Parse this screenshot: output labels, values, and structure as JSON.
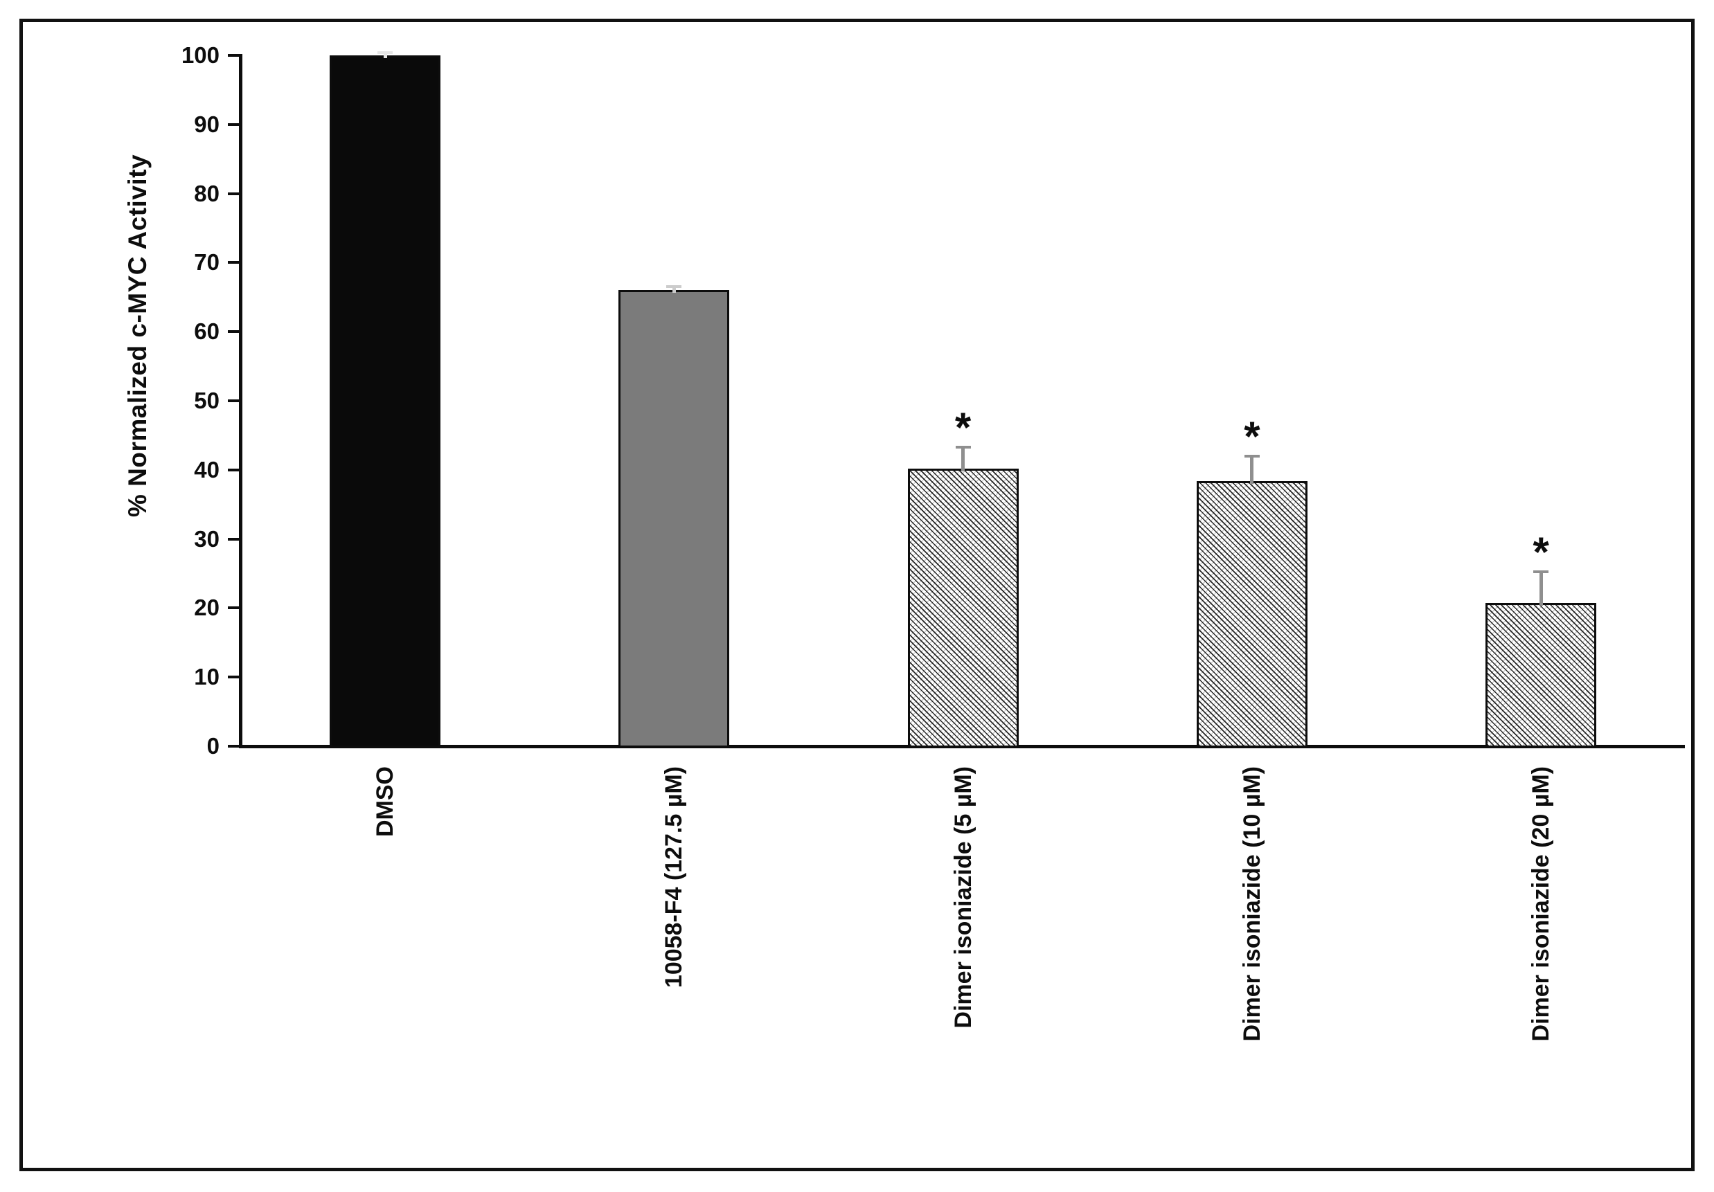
{
  "figure": {
    "background": "#ffffff",
    "frame_border_color": "#111111",
    "axis_color": "#0d0d0d",
    "significance_marker": "*"
  },
  "chart_data": {
    "type": "bar",
    "title": "",
    "xlabel": "",
    "ylabel": "% Normalized c-MYC Activity",
    "ylim": [
      0,
      100
    ],
    "ytick_step": 10,
    "ytick_labels": [
      "0",
      "10",
      "20",
      "30",
      "40",
      "50",
      "60",
      "70",
      "80",
      "90",
      "100"
    ],
    "grid": false,
    "legend_position": "none",
    "error_bars": true,
    "categories": [
      "DMSO",
      "10058-F4 (127.5 µM)",
      "Dimer isoniazide (5 µM)",
      "Dimer isoniazide (10 µM)",
      "Dimer isoniazide (20 µM)"
    ],
    "bars": [
      {
        "label": "DMSO",
        "value": 100,
        "error": 0.4,
        "fill": "solid-black",
        "color": "#0a0a0a",
        "err_color": "#e6e6e6",
        "significant": false
      },
      {
        "label": "10058-F4 (127.5 µM)",
        "value": 66,
        "error": 0.5,
        "fill": "solid-gray",
        "color": "#7b7b7b",
        "err_color": "#cccccc",
        "significant": false
      },
      {
        "label": "Dimer isoniazide (5 µM)",
        "value": 40.2,
        "error": 3.1,
        "fill": "hatch",
        "color": "#ffffff",
        "err_color": "#8f8f8f",
        "significant": true
      },
      {
        "label": "Dimer isoniazide (10 µM)",
        "value": 38.4,
        "error": 3.6,
        "fill": "hatch",
        "color": "#ffffff",
        "err_color": "#8f8f8f",
        "significant": true
      },
      {
        "label": "Dimer isoniazide (20 µM)",
        "value": 20.7,
        "error": 4.6,
        "fill": "hatch",
        "color": "#ffffff",
        "err_color": "#8f8f8f",
        "significant": true
      }
    ]
  }
}
